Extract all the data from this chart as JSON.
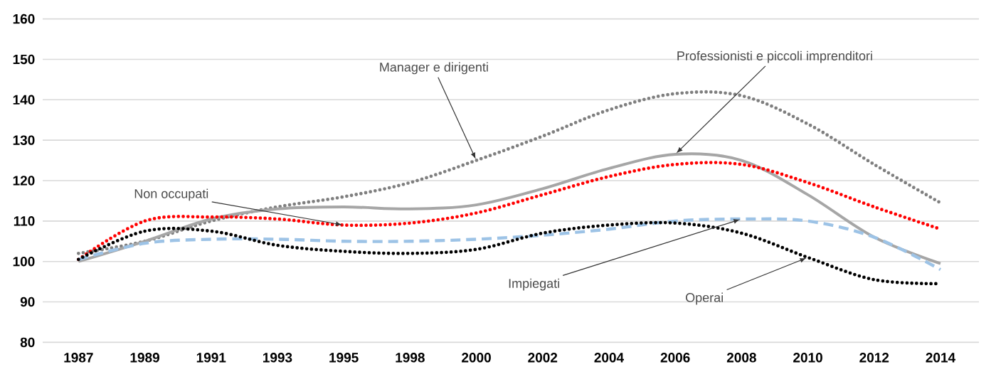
{
  "chart_data": {
    "type": "line",
    "categories": [
      "1987",
      "1989",
      "1991",
      "1993",
      "1995",
      "1998",
      "2000",
      "2002",
      "2004",
      "2006",
      "2008",
      "2010",
      "2012",
      "2014"
    ],
    "ylim": [
      80,
      160
    ],
    "yticks": [
      80,
      90,
      100,
      110,
      120,
      130,
      140,
      150,
      160
    ],
    "grid": "y",
    "series": [
      {
        "name": "Manager e dirigenti",
        "color": "#7f7f7f",
        "line_style": "dotted",
        "values": [
          102,
          105,
          110,
          113.5,
          116,
          119.5,
          125,
          131,
          137.5,
          141.5,
          141,
          134,
          124,
          114.5
        ]
      },
      {
        "name": "Professionisti e piccoli imprenditori",
        "color": "#a6a6a6",
        "line_style": "solid",
        "values": [
          100,
          105,
          110.5,
          113,
          113.5,
          113,
          114,
          118,
          123,
          126.5,
          125,
          116.5,
          106,
          99.5
        ]
      },
      {
        "name": "Non occupati",
        "color": "#ff0000",
        "line_style": "dotted",
        "values": [
          100.5,
          110,
          111,
          110.5,
          109,
          109.5,
          112,
          116.5,
          121,
          124,
          124,
          119.5,
          113.5,
          108
        ]
      },
      {
        "name": "Impiegati",
        "color": "#9dc3e6",
        "line_style": "dashed",
        "values": [
          100.5,
          104.5,
          105.5,
          105.5,
          105,
          105,
          105.5,
          106.5,
          108,
          110,
          110.5,
          110,
          106,
          98
        ]
      },
      {
        "name": "Operai",
        "color": "#000000",
        "line_style": "dotted",
        "values": [
          100.5,
          107.5,
          107.5,
          104,
          102.5,
          102,
          103,
          107,
          109,
          109.5,
          107,
          101,
          95.5,
          94.5
        ]
      }
    ]
  }
}
